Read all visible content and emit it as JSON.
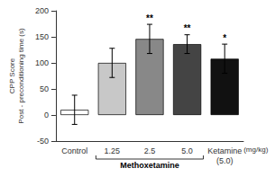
{
  "chart_data": {
    "type": "bar",
    "categories": [
      "Control",
      "1.25",
      "2.5",
      "5.0",
      "Ketamine\n(5.0)"
    ],
    "values": [
      10,
      100,
      146,
      136,
      108
    ],
    "errors": [
      28,
      28,
      28,
      18,
      28
    ],
    "colors": [
      "#ffffff",
      "#c8c8c8",
      "#888888",
      "#444444",
      "#111111"
    ],
    "significance": [
      null,
      null,
      "**",
      "**",
      "*"
    ],
    "ylabel": "CPP Score\nPost - preconditioning time (s)",
    "ylim": [
      -50,
      200
    ],
    "yticks": [
      -50,
      0,
      50,
      100,
      150,
      200
    ],
    "grid": false,
    "annotations": [
      {
        "text": "(mg/kg)",
        "categories": [
          "Ketamine\n(5.0)"
        ]
      },
      {
        "text": "Methoxetamine",
        "categories": [
          "1.25",
          "2.5",
          "5.0"
        ]
      }
    ]
  }
}
